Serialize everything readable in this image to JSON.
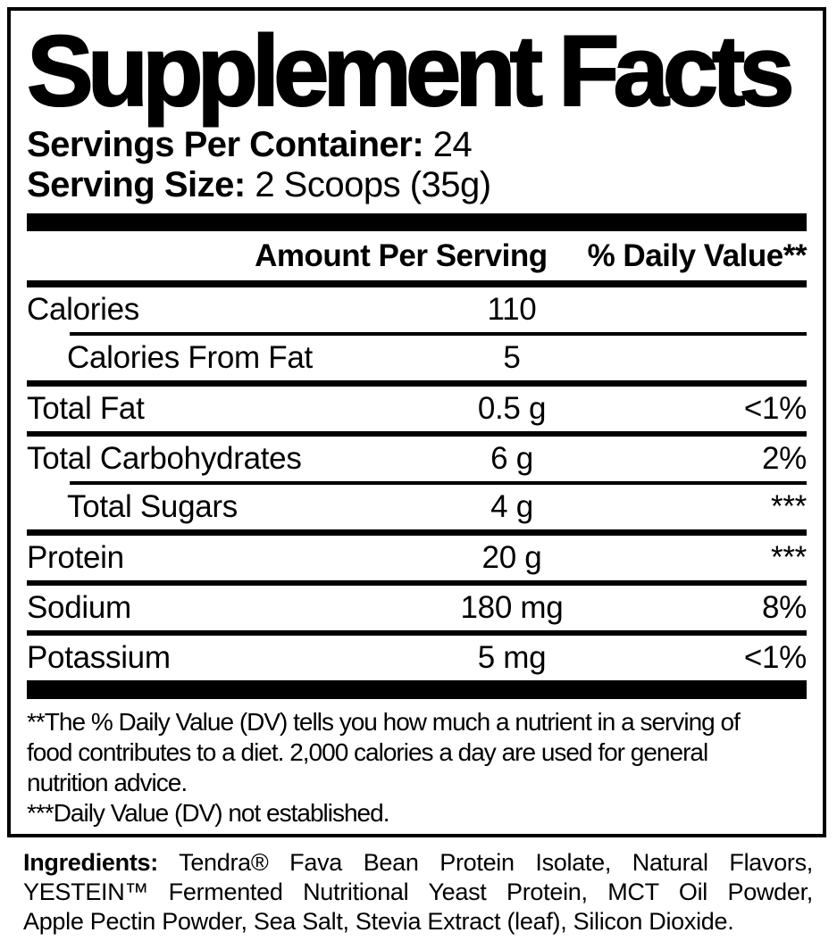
{
  "label": {
    "title": "Supplement Facts",
    "servings_per_container_label": "Servings Per Container:",
    "servings_per_container_value": " 24",
    "serving_size_label": "Serving Size:",
    "serving_size_value": " 2 Scoops (35g)",
    "columns": {
      "amount": "Amount Per Serving",
      "daily_value": "% Daily Value**"
    },
    "rows": [
      {
        "name": "Calories",
        "amount": "110",
        "dv": ""
      },
      {
        "name": "Calories From Fat",
        "amount": "5",
        "dv": ""
      },
      {
        "name": "Total Fat",
        "amount": "0.5 g",
        "dv": "<1%"
      },
      {
        "name": "Total Carbohydrates",
        "amount": "6 g",
        "dv": "2%"
      },
      {
        "name": "Total Sugars",
        "amount": "4 g",
        "dv": "***"
      },
      {
        "name": "Protein",
        "amount": "20 g",
        "dv": "***"
      },
      {
        "name": "Sodium",
        "amount": "180 mg",
        "dv": "8%"
      },
      {
        "name": "Potassium",
        "amount": "5 mg",
        "dv": "<1%"
      }
    ],
    "footnotes": {
      "dv_lines": [
        "**The % Daily Value (DV) tells you how much a nutrient in a serving of",
        "food contributes to a diet. 2,000 calories a day are used for general",
        "nutrition advice."
      ],
      "not_established": "***Daily Value (DV) not established."
    }
  },
  "ingredients": {
    "label": "Ingredients:",
    "lines": [
      " Tendra® Fava Bean Protein Isolate, Natural Flavors,",
      "YESTEIN™ Fermented Nutritional Yeast Protein, MCT Oil Powder,",
      "Apple Pectin Powder, Sea Salt, Stevia Extract (leaf), Silicon Dioxide."
    ]
  },
  "colors": {
    "ink": "#000000",
    "background": "#ffffff"
  }
}
